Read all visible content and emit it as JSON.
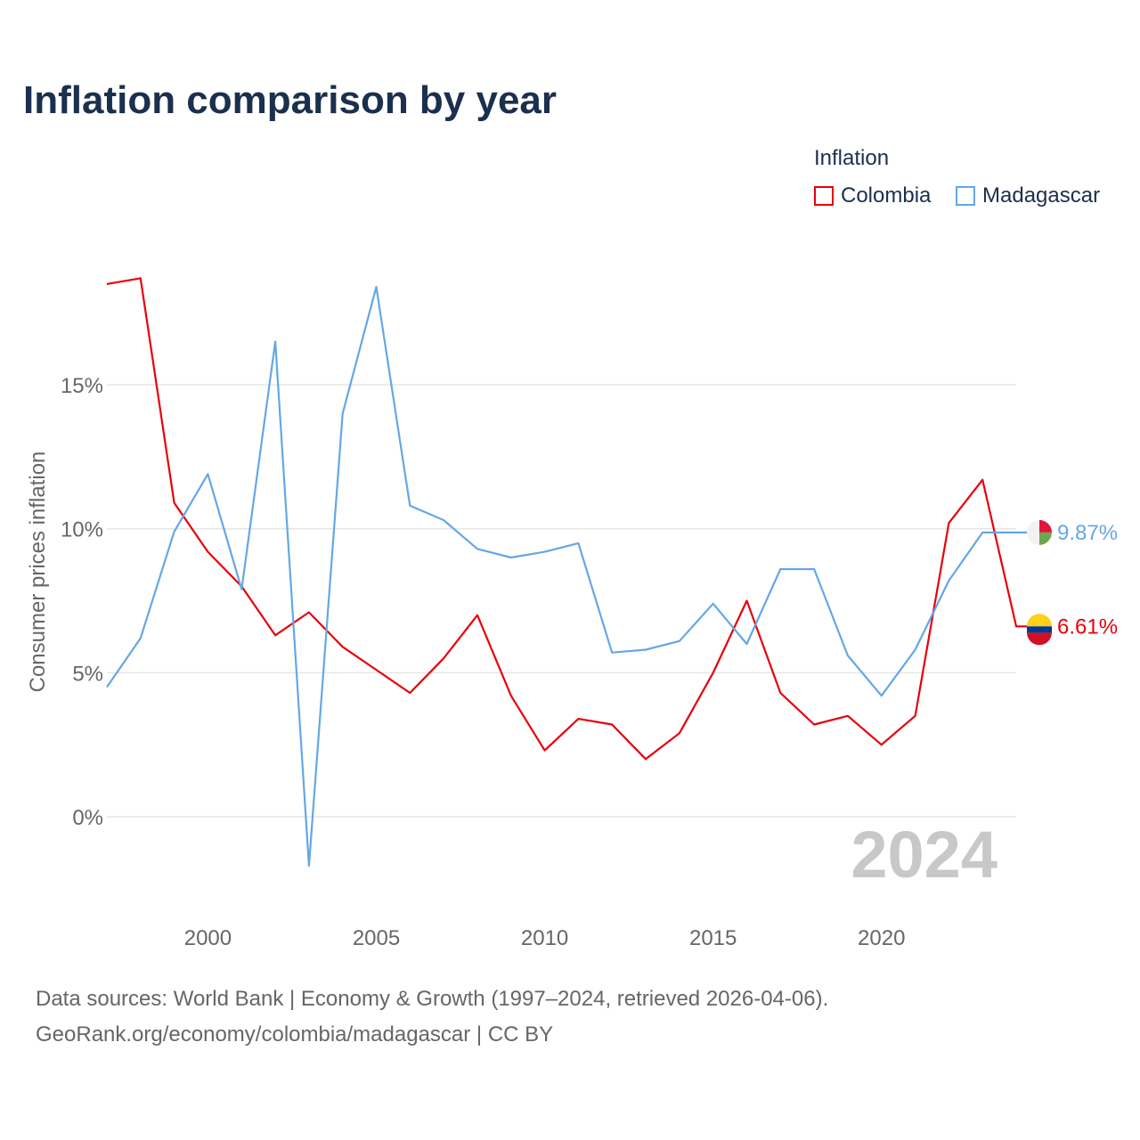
{
  "title": "Inflation comparison by year",
  "legend": {
    "title": "Inflation",
    "items": [
      {
        "label": "Colombia",
        "color": "#e8000b"
      },
      {
        "label": "Madagascar",
        "color": "#64a7e6"
      }
    ]
  },
  "chart_data": {
    "type": "line",
    "title": "Inflation comparison by year",
    "ylabel": "Consumer prices inflation",
    "xlabel": "",
    "x": [
      1997,
      1998,
      1999,
      2000,
      2001,
      2002,
      2003,
      2004,
      2005,
      2006,
      2007,
      2008,
      2009,
      2010,
      2011,
      2012,
      2013,
      2014,
      2015,
      2016,
      2017,
      2018,
      2019,
      2020,
      2021,
      2022,
      2023,
      2024
    ],
    "xlim": [
      1997,
      2024
    ],
    "ylim": [
      -3,
      19
    ],
    "x_ticks": [
      2000,
      2005,
      2010,
      2015,
      2020
    ],
    "y_ticks": [
      0,
      5,
      10,
      15
    ],
    "y_tick_labels": [
      "0%",
      "5%",
      "10%",
      "15%"
    ],
    "grid": true,
    "year_label": "2024",
    "series": [
      {
        "name": "Colombia",
        "color": "#e8000b",
        "end_label": "6.61%",
        "end_value": 6.61,
        "values": [
          18.5,
          18.7,
          10.9,
          9.2,
          8.0,
          6.3,
          7.1,
          5.9,
          5.1,
          4.3,
          5.5,
          7.0,
          4.2,
          2.3,
          3.4,
          3.2,
          2.0,
          2.9,
          5.0,
          7.5,
          4.3,
          3.2,
          3.5,
          2.5,
          3.5,
          10.2,
          11.7,
          6.61
        ]
      },
      {
        "name": "Madagascar",
        "color": "#64a7e6",
        "end_label": "9.87%",
        "end_value": 9.87,
        "values": [
          4.5,
          6.2,
          9.9,
          11.9,
          7.9,
          16.5,
          -1.7,
          14.0,
          18.4,
          10.8,
          10.3,
          9.3,
          9.0,
          9.2,
          9.5,
          5.7,
          5.8,
          6.1,
          7.4,
          6.0,
          8.6,
          8.6,
          5.6,
          4.2,
          5.8,
          8.2,
          9.87,
          9.87
        ]
      }
    ]
  },
  "footer": {
    "line1": "Data sources: World Bank | Economy & Growth (1997–2024, retrieved 2026-04-06).",
    "line2": "GeoRank.org/economy/colombia/madagascar | CC BY"
  }
}
